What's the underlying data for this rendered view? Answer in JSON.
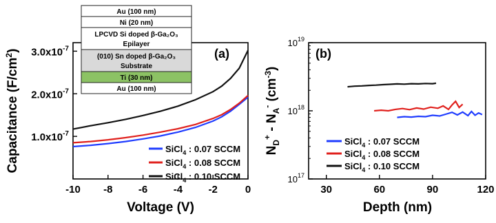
{
  "chart_data": [
    {
      "type": "line",
      "panel_label": "(a)",
      "xlabel": "Voltage (V)",
      "ylabel": "Capacitance (F/cm²)",
      "xlim": [
        -10,
        0
      ],
      "ylim": [
        0,
        3.2e-07
      ],
      "x_ticks": [
        -10,
        -8,
        -6,
        -4,
        -2,
        0
      ],
      "x_tick_labels": [
        "-10",
        "-8",
        "-6",
        "-4",
        "-2",
        "0"
      ],
      "y_ticks": [
        1e-07,
        2e-07,
        3e-07
      ],
      "y_tick_mantissa": [
        "1.0x10",
        "2.0x10",
        "3.0x10"
      ],
      "y_tick_exp": "-7",
      "grid": false,
      "legend_position": "bottom-right",
      "series": [
        {
          "name": "SiCl4 : 0.07 SCCM",
          "legend_main": "SiCl",
          "legend_sub": "4",
          "legend_rest": " : 0.07 SCCM",
          "color": "#1f3cff",
          "x": [
            -10,
            -9,
            -8,
            -7,
            -6,
            -5,
            -4,
            -3,
            -2,
            -1.5,
            -1,
            -0.5,
            0
          ],
          "y": [
            7.6e-08,
            7.9e-08,
            8.3e-08,
            8.8e-08,
            9.4e-08,
            1.01e-07,
            1.1e-07,
            1.21e-07,
            1.36e-07,
            1.46e-07,
            1.59e-07,
            1.75e-07,
            1.92e-07
          ]
        },
        {
          "name": "SiCl4 : 0.08 SCCM",
          "legend_main": "SiCl",
          "legend_sub": "4",
          "legend_rest": " : 0.08 SCCM",
          "color": "#e0201c",
          "x": [
            -10,
            -9,
            -8,
            -7,
            -6,
            -5,
            -4,
            -3,
            -2,
            -1.5,
            -1,
            -0.5,
            0
          ],
          "y": [
            8.5e-08,
            8.8e-08,
            9.2e-08,
            9.7e-08,
            1.03e-07,
            1.1e-07,
            1.18e-07,
            1.28e-07,
            1.42e-07,
            1.51e-07,
            1.63e-07,
            1.78e-07,
            1.96e-07
          ]
        },
        {
          "name": "SiCl4 : 0.10 SCCM",
          "legend_main": "SiCl",
          "legend_sub": "4",
          "legend_rest": " : 0.10 SCCM",
          "color": "#111111",
          "x": [
            -10,
            -9,
            -8,
            -7,
            -6,
            -5,
            -4,
            -3,
            -2,
            -1.5,
            -1,
            -0.5,
            0
          ],
          "y": [
            1.17e-07,
            1.25e-07,
            1.32e-07,
            1.4e-07,
            1.49e-07,
            1.59e-07,
            1.71e-07,
            1.86e-07,
            2.05e-07,
            2.18e-07,
            2.36e-07,
            2.6e-07,
            3.02e-07
          ]
        }
      ],
      "inset_stack": [
        {
          "label": "Au (100 nm)",
          "color": "#ffffff"
        },
        {
          "label": "Ni (20 nm)",
          "color": "#ffffff"
        },
        {
          "label": "LPCVD Si doped β-Ga₂O₃",
          "label2": "Epilayer",
          "color": "#ffffff"
        },
        {
          "label": "(010) Sn doped β-Ga₂O₃",
          "label2": "Substrate",
          "color": "#d9d9d9"
        },
        {
          "label": "Ti (30 nm)",
          "color": "#8cc264"
        },
        {
          "label": "Au (100 nm)",
          "color": "#ffffff"
        }
      ]
    },
    {
      "type": "line",
      "panel_label": "(b)",
      "xlabel": "Depth (nm)",
      "ylabel": "N_D+ - N_A- (cm-3)",
      "y_scale": "log",
      "xlim": [
        20,
        120
      ],
      "ylim": [
        1e+17,
        1e+19
      ],
      "x_ticks": [
        30,
        60,
        90,
        120
      ],
      "x_tick_labels": [
        "30",
        "60",
        "90",
        "120"
      ],
      "y_ticks": [
        1e+17,
        1e+18,
        1e+19
      ],
      "y_tick_base": "10",
      "y_tick_exps": [
        "17",
        "18",
        "19"
      ],
      "grid": false,
      "legend_position": "bottom-left",
      "series": [
        {
          "name": "SiCl4 : 0.07 SCCM",
          "legend_main": "SiCl",
          "legend_sub": "4",
          "legend_rest": " : 0.07 SCCM",
          "color": "#1f3cff",
          "x": [
            70,
            74,
            78,
            82,
            86,
            90,
            94,
            98,
            101,
            104,
            107,
            110,
            112,
            114,
            116,
            118
          ],
          "y": [
            8e+17,
            8.2e+17,
            8.1e+17,
            8.3e+17,
            8.2e+17,
            8.6e+17,
            8.4e+17,
            9e+17,
            9.5e+17,
            8.7e+17,
            9.6e+17,
            8.5e+17,
            9.8e+17,
            8.6e+17,
            9.3e+17,
            8.8e+17
          ]
        },
        {
          "name": "SiCl4 : 0.08 SCCM",
          "legend_main": "SiCl",
          "legend_sub": "4",
          "legend_rest": " : 0.08 SCCM",
          "color": "#e0201c",
          "x": [
            57,
            61,
            65,
            69,
            73,
            77,
            81,
            85,
            89,
            93,
            96,
            99,
            101,
            103,
            105,
            107
          ],
          "y": [
            1e+18,
            1.02e+18,
            1e+18,
            1.05e+18,
            1.08e+18,
            1.04e+18,
            1.1e+18,
            1.06e+18,
            1.13e+18,
            1.09e+18,
            1.18e+18,
            1.05e+18,
            1.22e+18,
            1.38e+18,
            1.12e+18,
            1.25e+18
          ]
        },
        {
          "name": "SiCl4 : 0.10 SCCM",
          "legend_main": "SiCl",
          "legend_sub": "4",
          "legend_rest": " : 0.10 SCCM",
          "color": "#111111",
          "x": [
            42,
            46,
            50,
            54,
            58,
            62,
            66,
            70,
            74,
            78,
            82,
            86,
            90,
            92
          ],
          "y": [
            2.25e+18,
            2.3e+18,
            2.32e+18,
            2.36e+18,
            2.38e+18,
            2.42e+18,
            2.45e+18,
            2.48e+18,
            2.46e+18,
            2.5e+18,
            2.48e+18,
            2.52e+18,
            2.5e+18,
            2.54e+18
          ]
        }
      ]
    }
  ]
}
